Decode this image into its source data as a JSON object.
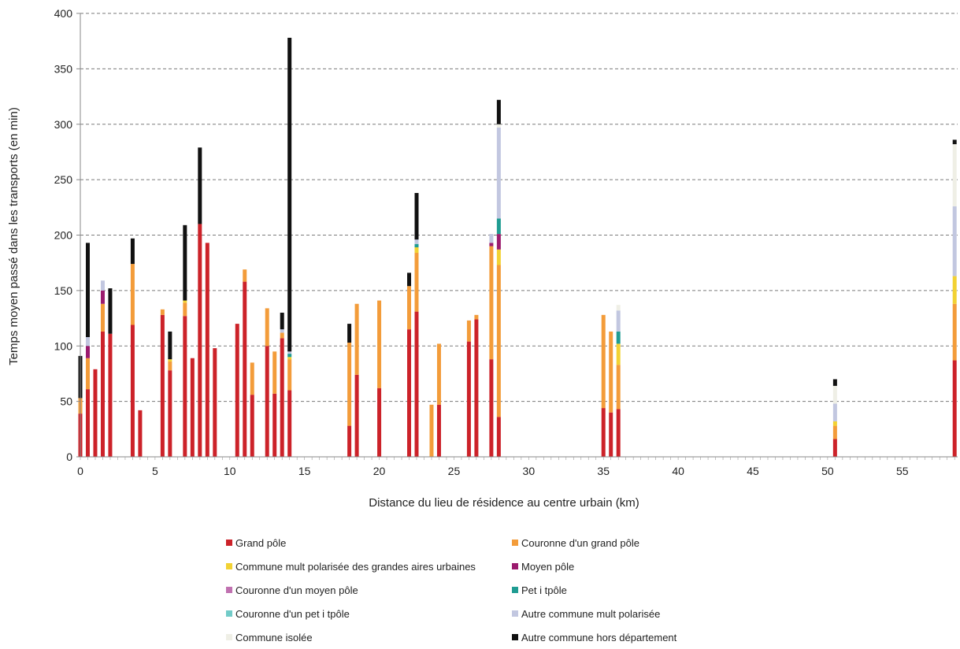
{
  "chart_data": {
    "type": "bar",
    "stacked": true,
    "title": "",
    "xlabel": "Distance du lieu de résidence au centre urbain (km)",
    "ylabel": "Temps moyen passé dans les transports (en min)",
    "xlim": [
      0,
      58.7
    ],
    "ylim": [
      0,
      400
    ],
    "xticks": [
      0,
      5,
      10,
      15,
      20,
      25,
      30,
      35,
      40,
      45,
      50,
      55
    ],
    "yticks": [
      0,
      50,
      100,
      150,
      200,
      250,
      300,
      350,
      400
    ],
    "grid": "horizontal dashed",
    "legend_position": "bottom",
    "series": [
      {
        "name": "Grand pôle",
        "color": "#cc2229"
      },
      {
        "name": "Couronne d'un grand pôle",
        "color": "#f39c3a"
      },
      {
        "name": "Commune mult polarisée des grandes aires urbaines",
        "color": "#f2d233"
      },
      {
        "name": "Moyen pôle",
        "color": "#9b1b6e"
      },
      {
        "name": "Couronne d'un moyen pôle",
        "color": "#c071b0"
      },
      {
        "name": "Pet i tpôle",
        "color": "#1f9c92"
      },
      {
        "name": "Couronne d'un pet i tpôle",
        "color": "#72cbc8"
      },
      {
        "name": "Autre commune mult polarisée",
        "color": "#c2c7e0"
      },
      {
        "name": "Commune isolée",
        "color": "#efefe6"
      },
      {
        "name": "Autre commune hors département",
        "color": "#111111"
      }
    ],
    "points": [
      {
        "x": 0,
        "values": [
          39,
          14,
          0,
          0,
          0,
          0,
          0,
          0,
          0,
          38
        ]
      },
      {
        "x": 0.5,
        "values": [
          61,
          28,
          0,
          11,
          0,
          0,
          0,
          8,
          0,
          85
        ]
      },
      {
        "x": 1,
        "values": [
          79,
          0,
          0,
          0,
          0,
          0,
          0,
          0,
          0,
          0
        ]
      },
      {
        "x": 1.5,
        "values": [
          113,
          25,
          0,
          12,
          0,
          0,
          0,
          9,
          0,
          0
        ]
      },
      {
        "x": 2,
        "values": [
          111,
          0,
          0,
          0,
          0,
          0,
          0,
          0,
          0,
          41
        ]
      },
      {
        "x": 3.5,
        "values": [
          119,
          55,
          0,
          0,
          0,
          0,
          0,
          0,
          0,
          23
        ]
      },
      {
        "x": 4,
        "values": [
          42,
          0,
          0,
          0,
          0,
          0,
          0,
          0,
          0,
          0
        ]
      },
      {
        "x": 5.5,
        "values": [
          128,
          5,
          0,
          0,
          0,
          0,
          0,
          0,
          0,
          0
        ]
      },
      {
        "x": 6,
        "values": [
          78,
          8,
          2,
          0,
          0,
          0,
          0,
          0,
          0,
          25
        ]
      },
      {
        "x": 7,
        "values": [
          127,
          12,
          2,
          0,
          0,
          0,
          0,
          0,
          0,
          68
        ]
      },
      {
        "x": 7.5,
        "values": [
          89,
          0,
          0,
          0,
          0,
          0,
          0,
          0,
          0,
          0
        ]
      },
      {
        "x": 8,
        "values": [
          210,
          0,
          0,
          0,
          0,
          0,
          0,
          0,
          0,
          69
        ]
      },
      {
        "x": 8.5,
        "values": [
          193,
          0,
          0,
          0,
          0,
          0,
          0,
          0,
          0,
          0
        ]
      },
      {
        "x": 9,
        "values": [
          98,
          0,
          0,
          0,
          0,
          0,
          0,
          0,
          0,
          0
        ]
      },
      {
        "x": 10.5,
        "values": [
          120,
          0,
          0,
          0,
          0,
          0,
          0,
          0,
          0,
          0
        ]
      },
      {
        "x": 11,
        "values": [
          158,
          11,
          0,
          0,
          0,
          0,
          0,
          0,
          0,
          0
        ]
      },
      {
        "x": 11.5,
        "values": [
          56,
          29,
          0,
          0,
          0,
          0,
          0,
          0,
          0,
          0
        ]
      },
      {
        "x": 12.5,
        "values": [
          100,
          34,
          0,
          0,
          0,
          0,
          0,
          0,
          0,
          0
        ]
      },
      {
        "x": 13,
        "values": [
          57,
          38,
          0,
          0,
          0,
          0,
          0,
          0,
          0,
          0
        ]
      },
      {
        "x": 13.5,
        "values": [
          107,
          5,
          0,
          0,
          0,
          0,
          0,
          3,
          0,
          15
        ]
      },
      {
        "x": 14,
        "values": [
          60,
          28,
          2,
          0,
          0,
          3,
          0,
          2,
          0,
          283
        ]
      },
      {
        "x": 18,
        "values": [
          28,
          75,
          0,
          0,
          0,
          0,
          0,
          0,
          0,
          17
        ]
      },
      {
        "x": 18.5,
        "values": [
          74,
          64,
          0,
          0,
          0,
          0,
          0,
          0,
          0,
          0
        ]
      },
      {
        "x": 20,
        "values": [
          62,
          79,
          0,
          0,
          0,
          0,
          0,
          0,
          0,
          0
        ]
      },
      {
        "x": 22,
        "values": [
          115,
          39,
          0,
          0,
          0,
          0,
          0,
          0,
          0,
          12
        ]
      },
      {
        "x": 22.5,
        "values": [
          131,
          53,
          5,
          0,
          0,
          3,
          0,
          4,
          0,
          42
        ]
      },
      {
        "x": 23.5,
        "values": [
          0,
          47,
          0,
          0,
          0,
          0,
          0,
          0,
          0,
          0
        ]
      },
      {
        "x": 24,
        "values": [
          47,
          55,
          0,
          0,
          0,
          0,
          0,
          0,
          0,
          0
        ]
      },
      {
        "x": 26,
        "values": [
          104,
          19,
          0,
          0,
          0,
          0,
          0,
          0,
          0,
          0
        ]
      },
      {
        "x": 26.5,
        "values": [
          124,
          4,
          0,
          0,
          0,
          0,
          0,
          0,
          0,
          0
        ]
      },
      {
        "x": 27.5,
        "values": [
          88,
          102,
          0,
          3,
          0,
          0,
          0,
          8,
          0,
          0
        ]
      },
      {
        "x": 28,
        "values": [
          36,
          137,
          14,
          14,
          0,
          14,
          0,
          82,
          3,
          22
        ]
      },
      {
        "x": 35,
        "values": [
          44,
          84,
          0,
          0,
          0,
          0,
          0,
          0,
          0,
          0
        ]
      },
      {
        "x": 35.5,
        "values": [
          40,
          73,
          0,
          0,
          0,
          0,
          0,
          0,
          0,
          0
        ]
      },
      {
        "x": 36,
        "values": [
          43,
          40,
          19,
          0,
          0,
          11,
          0,
          19,
          5,
          0
        ]
      },
      {
        "x": 50.5,
        "values": [
          16,
          12,
          4,
          0,
          0,
          0,
          0,
          16,
          16,
          6
        ]
      },
      {
        "x": 58.5,
        "values": [
          87,
          51,
          25,
          0,
          0,
          0,
          0,
          63,
          56,
          4
        ]
      }
    ]
  }
}
